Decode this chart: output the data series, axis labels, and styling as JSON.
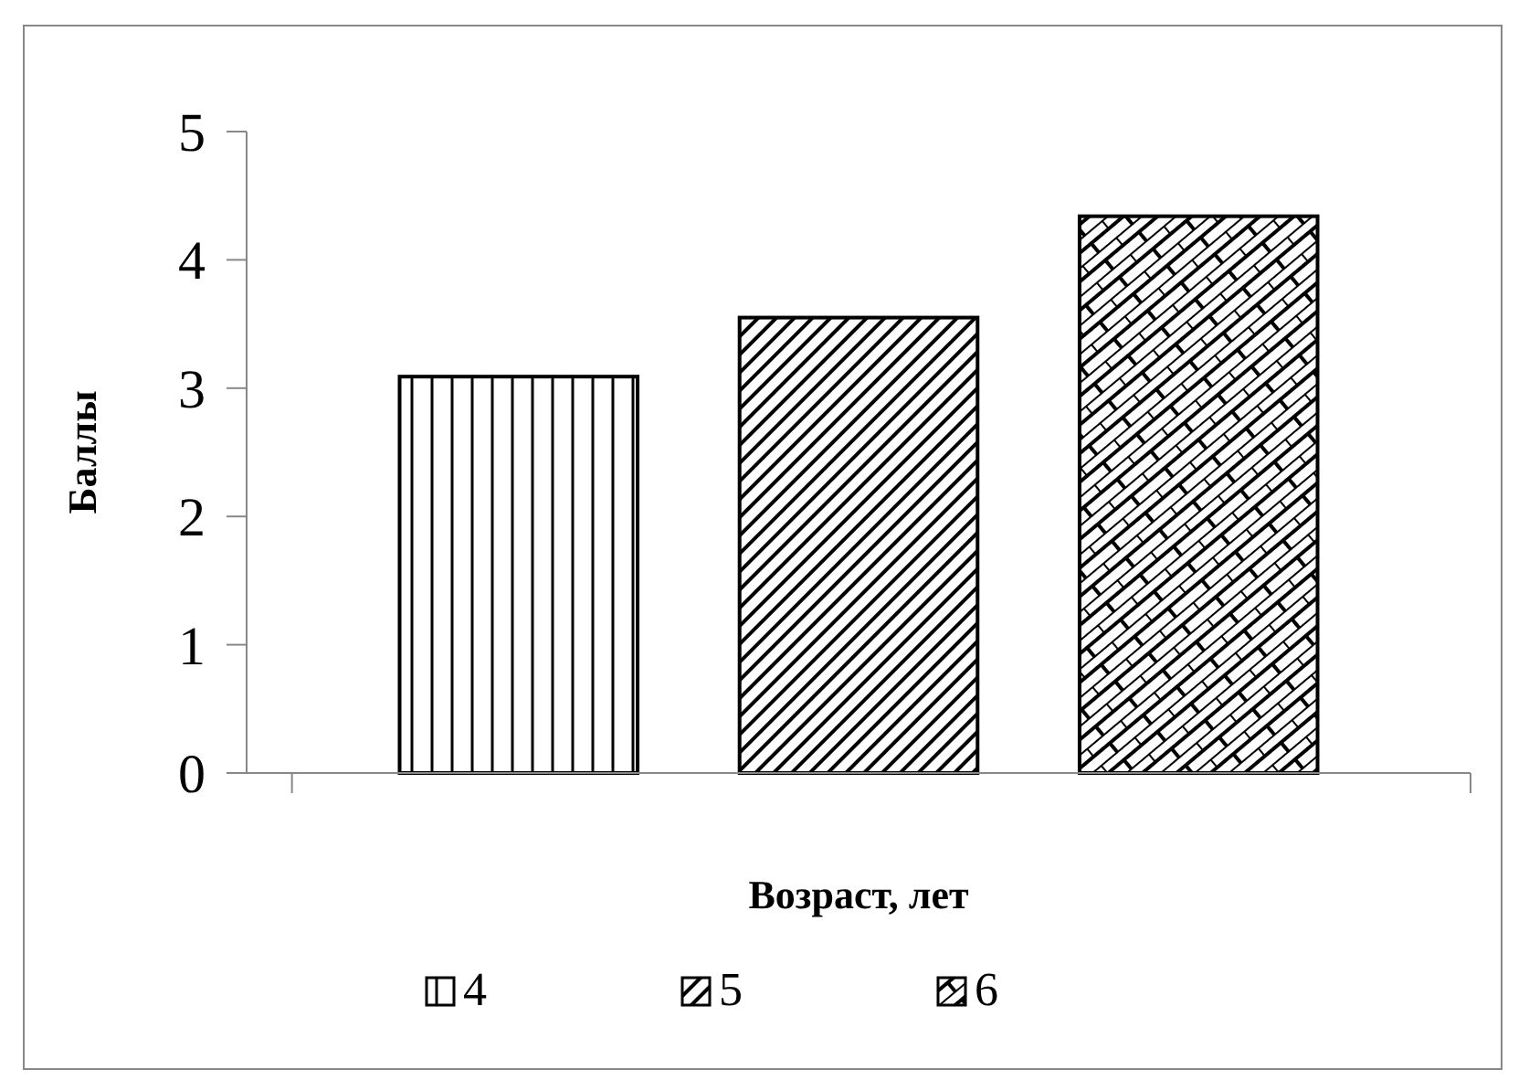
{
  "chart_data": {
    "type": "bar",
    "xlabel": "Возраст, лет",
    "ylabel": "Баллы",
    "categories": [
      null
    ],
    "series": [
      {
        "name": "4",
        "color": "#000000",
        "values": [
          3.09
        ]
      },
      {
        "name": "5",
        "color": "#000000",
        "values": [
          3.55
        ]
      },
      {
        "name": "6",
        "color": "#000000",
        "values": [
          4.34
        ]
      }
    ],
    "ylim": [
      0,
      5
    ],
    "yticks": [
      0,
      1,
      2,
      3,
      4,
      5
    ],
    "grid": false,
    "legend": "bottom"
  }
}
